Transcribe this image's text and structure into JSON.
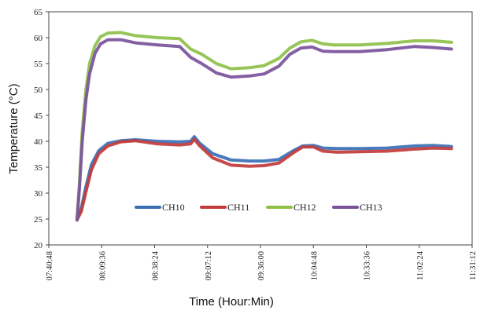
{
  "chart_data": {
    "type": "line",
    "title": "",
    "xlabel": "Time (Hour:Min)",
    "ylabel": "Temperature (°C)",
    "ylim": [
      20,
      65
    ],
    "y_ticks": [
      20,
      25,
      30,
      35,
      40,
      45,
      50,
      55,
      60,
      65
    ],
    "x_ticks": [
      "07:40:48",
      "08:09:36",
      "08:38:24",
      "09:07:12",
      "09:36:00",
      "10:04:48",
      "10:33:36",
      "11:02:24",
      "11:31:12"
    ],
    "xlim": [
      "07:40:48",
      "11:31:12"
    ],
    "grid": false,
    "legend_position": "center",
    "series": [
      {
        "name": "CH10",
        "color": "#3b6fb6",
        "x": [
          "07:56:10",
          "07:58:30",
          "08:00:50",
          "08:04:00",
          "08:08:00",
          "08:13:00",
          "08:20:00",
          "08:28:00",
          "08:40:00",
          "08:52:00",
          "08:58:00",
          "09:00:00",
          "09:03:00",
          "09:10:00",
          "09:20:00",
          "09:30:00",
          "09:38:00",
          "09:46:00",
          "09:54:00",
          "09:59:00",
          "10:05:00",
          "10:10:00",
          "10:18:00",
          "10:30:00",
          "10:45:00",
          "11:00:00",
          "11:10:00",
          "11:20:00"
        ],
        "y": [
          25,
          27,
          31,
          35.5,
          38.2,
          39.6,
          40.1,
          40.3,
          40.0,
          39.9,
          40.0,
          40.9,
          39.6,
          37.6,
          36.4,
          36.2,
          36.2,
          36.5,
          38.2,
          39.1,
          39.2,
          38.7,
          38.6,
          38.6,
          38.7,
          39.1,
          39.2,
          39.0
        ]
      },
      {
        "name": "CH11",
        "color": "#c23b3b",
        "x": [
          "07:56:10",
          "07:58:30",
          "08:00:50",
          "08:04:00",
          "08:08:00",
          "08:13:00",
          "08:20:00",
          "08:28:00",
          "08:40:00",
          "08:52:00",
          "08:58:00",
          "09:00:00",
          "09:03:00",
          "09:10:00",
          "09:20:00",
          "09:30:00",
          "09:38:00",
          "09:46:00",
          "09:54:00",
          "09:59:00",
          "10:05:00",
          "10:10:00",
          "10:18:00",
          "10:30:00",
          "10:45:00",
          "11:00:00",
          "11:10:00",
          "11:20:00"
        ],
        "y": [
          24.8,
          26.5,
          30,
          34.5,
          37.6,
          39.1,
          39.9,
          40.1,
          39.5,
          39.3,
          39.5,
          40.4,
          39.1,
          36.8,
          35.4,
          35.2,
          35.3,
          35.8,
          37.8,
          38.9,
          38.9,
          38.1,
          37.9,
          38.0,
          38.1,
          38.5,
          38.7,
          38.6
        ]
      },
      {
        "name": "CH12",
        "color": "#8fc04a",
        "x": [
          "07:56:10",
          "07:57:30",
          "07:59:00",
          "08:01:00",
          "08:03:00",
          "08:06:00",
          "08:09:00",
          "08:13:00",
          "08:20:00",
          "08:28:00",
          "08:40:00",
          "08:52:00",
          "08:58:00",
          "09:04:00",
          "09:12:00",
          "09:20:00",
          "09:30:00",
          "09:38:00",
          "09:46:00",
          "09:52:00",
          "09:58:00",
          "10:04:00",
          "10:10:00",
          "10:16:00",
          "10:30:00",
          "10:45:00",
          "11:00:00",
          "11:10:00",
          "11:20:00"
        ],
        "y": [
          25,
          32,
          42,
          50,
          55,
          58.5,
          60.2,
          60.9,
          61.0,
          60.4,
          60.0,
          59.8,
          57.8,
          56.8,
          55.0,
          54.0,
          54.2,
          54.6,
          56.0,
          58.0,
          59.2,
          59.5,
          58.8,
          58.6,
          58.6,
          58.9,
          59.4,
          59.4,
          59.1
        ]
      },
      {
        "name": "CH13",
        "color": "#7b519c",
        "x": [
          "07:56:10",
          "07:57:30",
          "07:59:00",
          "08:01:00",
          "08:03:00",
          "08:06:00",
          "08:09:00",
          "08:13:00",
          "08:20:00",
          "08:28:00",
          "08:40:00",
          "08:52:00",
          "08:58:00",
          "09:04:00",
          "09:12:00",
          "09:20:00",
          "09:30:00",
          "09:38:00",
          "09:46:00",
          "09:52:00",
          "09:58:00",
          "10:04:00",
          "10:10:00",
          "10:16:00",
          "10:30:00",
          "10:45:00",
          "11:00:00",
          "11:10:00",
          "11:20:00"
        ],
        "y": [
          24.8,
          31,
          40,
          48,
          53,
          57,
          58.8,
          59.6,
          59.6,
          59.0,
          58.6,
          58.3,
          56.2,
          55.0,
          53.2,
          52.4,
          52.6,
          53.0,
          54.5,
          56.8,
          58.0,
          58.2,
          57.4,
          57.3,
          57.3,
          57.7,
          58.3,
          58.1,
          57.8
        ]
      }
    ]
  }
}
